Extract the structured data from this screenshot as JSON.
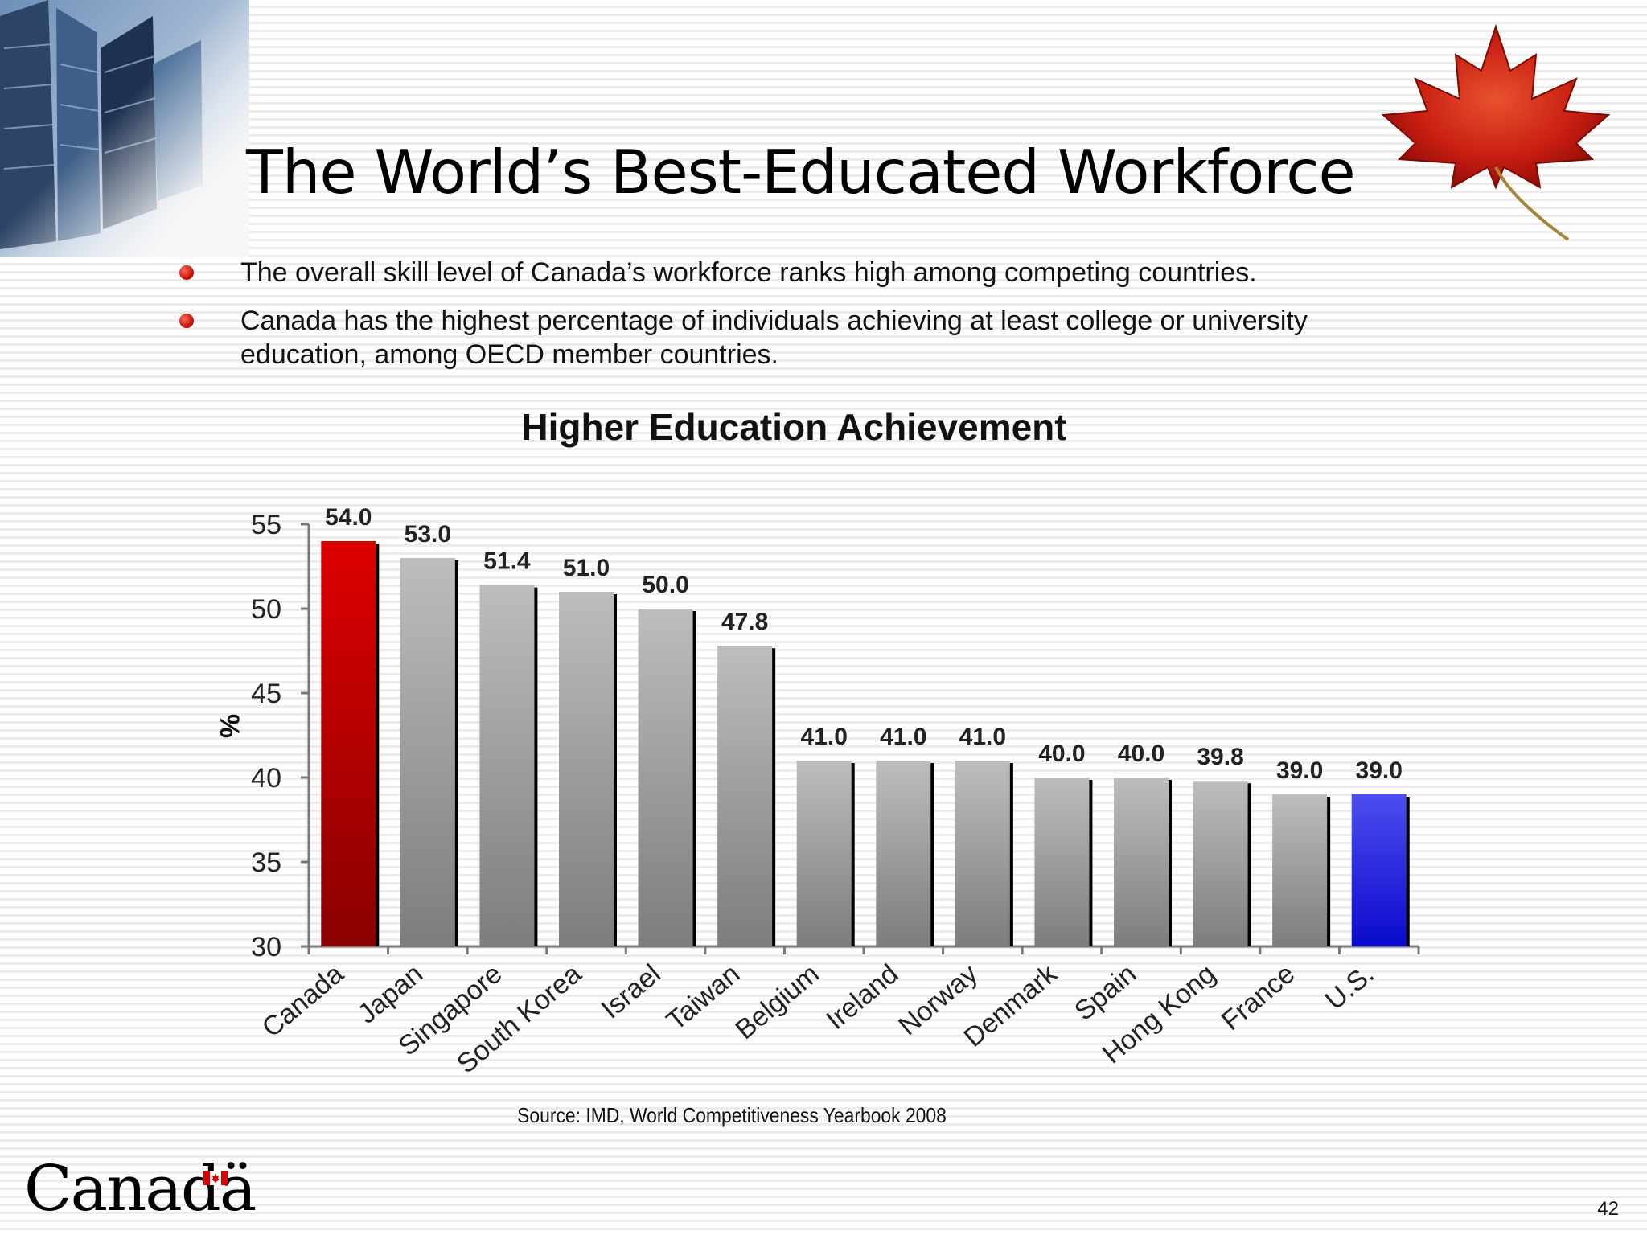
{
  "slide": {
    "title": "The World’s Best-Educated Workforce",
    "bullets": [
      "The overall skill level of Canada’s workforce ranks high among competing countries.",
      "Canada has the highest percentage of individuals achieving at least college or university education, among OECD member countries."
    ],
    "source": "Source: IMD, World Competitiveness Yearbook 2008",
    "wordmark": "Canadä",
    "page_number": "42"
  },
  "chart_data": {
    "type": "bar",
    "title": "Higher Education Achievement",
    "xlabel": "",
    "ylabel": "%",
    "ylim": [
      30,
      55
    ],
    "yticks": [
      30,
      35,
      40,
      45,
      50,
      55
    ],
    "categories": [
      "Canada",
      "Japan",
      "Singapore",
      "South Korea",
      "Israel",
      "Taiwan",
      "Belgium",
      "Ireland",
      "Norway",
      "Denmark",
      "Spain",
      "Hong Kong",
      "France",
      "U.S."
    ],
    "values": [
      54.0,
      53.0,
      51.4,
      51.0,
      50.0,
      47.8,
      41.0,
      41.0,
      41.0,
      40.0,
      40.0,
      39.8,
      39.0,
      39.0
    ],
    "data_labels": [
      "54.0",
      "53.0",
      "51.4",
      "51.0",
      "50.0",
      "47.8",
      "41.0",
      "41.0",
      "41.0",
      "40.0",
      "40.0",
      "39.8",
      "39.0",
      "39.0"
    ],
    "colors": {
      "Canada": "#cc0000",
      "U.S.": "#2b2bdd",
      "default": "#a8a8a8"
    },
    "grid": false,
    "legend": "none"
  }
}
